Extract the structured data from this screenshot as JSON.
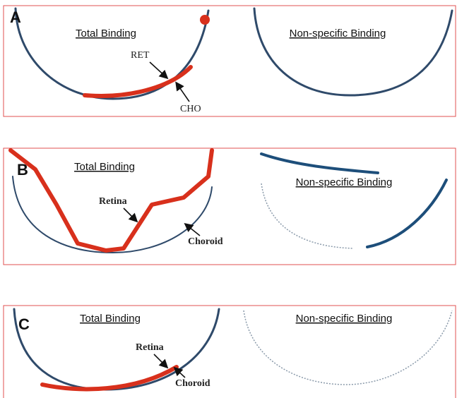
{
  "panels": [
    {
      "label": "A",
      "left_title": "Total Binding",
      "right_title": "Non-specific Binding",
      "annotations": [
        "RET",
        "CHO"
      ]
    },
    {
      "label": "B",
      "left_title": "Total Binding",
      "right_title": "Non-specific Binding",
      "annotations": [
        "Retina",
        "Choroid"
      ]
    },
    {
      "label": "C",
      "left_title": "Total Binding",
      "right_title": "Non-specific Binding",
      "annotations": [
        "Retina",
        "Choroid"
      ]
    }
  ]
}
